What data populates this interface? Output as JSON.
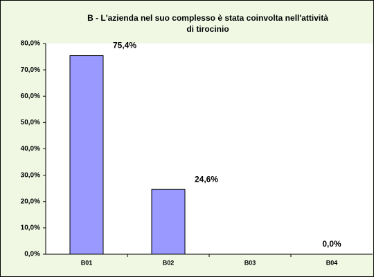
{
  "chart_data": {
    "type": "bar",
    "title": [
      "B - L'azienda nel suo complesso è stata coinvolta nell'attività",
      "di tirocinio"
    ],
    "categories": [
      "B01",
      "B02",
      "B03",
      "B04"
    ],
    "values": [
      75.4,
      24.6,
      null,
      0.0
    ],
    "value_labels": [
      "75,4%",
      "24,6%",
      null,
      "0,0%"
    ],
    "color": "#9999ff",
    "ylim": [
      0,
      80
    ],
    "yticks": [
      {
        "value": 0,
        "label": "0,0%"
      },
      {
        "value": 10,
        "label": "10,0%"
      },
      {
        "value": 20,
        "label": "20,0%"
      },
      {
        "value": 30,
        "label": "30,0%"
      },
      {
        "value": 40,
        "label": "40,0%"
      },
      {
        "value": 50,
        "label": "50,0%"
      },
      {
        "value": 60,
        "label": "60,0%"
      },
      {
        "value": 70,
        "label": "70,0%"
      },
      {
        "value": 80,
        "label": "80,0%"
      }
    ],
    "grid": false
  }
}
